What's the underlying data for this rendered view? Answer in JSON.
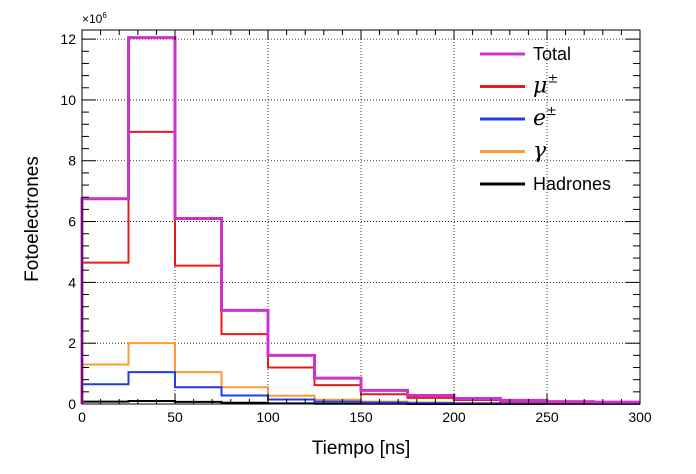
{
  "chart_data": {
    "type": "histogram",
    "xlabel": "Tiempo [ns]",
    "ylabel": "Fotoelectrones",
    "y_multiplier_label": "×10",
    "y_multiplier_exp": "6",
    "xlim": [
      0,
      300
    ],
    "ylim": [
      0,
      12.3
    ],
    "x_ticks": [
      0,
      50,
      100,
      150,
      200,
      250,
      300
    ],
    "y_ticks": [
      0,
      2,
      4,
      6,
      8,
      10,
      12
    ],
    "grid": true,
    "legend_position": "top-right",
    "bin_edges": [
      0,
      25,
      50,
      75,
      100,
      125,
      150,
      175,
      200,
      225,
      250,
      275,
      300
    ],
    "series": [
      {
        "name": "Total",
        "color": "#cc33cc",
        "values": [
          6.75,
          12.05,
          6.1,
          3.08,
          1.6,
          0.85,
          0.45,
          0.28,
          0.18,
          0.12,
          0.08,
          0.06
        ]
      },
      {
        "name": "μ",
        "name_sup": "±",
        "math": true,
        "color": "#e61c1c",
        "values": [
          4.65,
          8.95,
          4.55,
          2.3,
          1.2,
          0.62,
          0.32,
          0.2,
          0.13,
          0.08,
          0.05,
          0.04
        ]
      },
      {
        "name": "e",
        "name_sup": "±",
        "math": true,
        "color": "#1f3fe6",
        "values": [
          0.65,
          1.05,
          0.55,
          0.28,
          0.15,
          0.08,
          0.05,
          0.03,
          0.02,
          0.01,
          0.01,
          0.01
        ]
      },
      {
        "name": "γ",
        "math": true,
        "color": "#ff9933",
        "values": [
          1.3,
          2.0,
          1.05,
          0.55,
          0.27,
          0.14,
          0.08,
          0.05,
          0.03,
          0.02,
          0.01,
          0.01
        ]
      },
      {
        "name": "Hadrones",
        "color": "#000000",
        "values": [
          0.08,
          0.1,
          0.07,
          0.04,
          0.02,
          0.01,
          0.01,
          0.0,
          0.0,
          0.0,
          0.0,
          0.0
        ]
      }
    ]
  }
}
